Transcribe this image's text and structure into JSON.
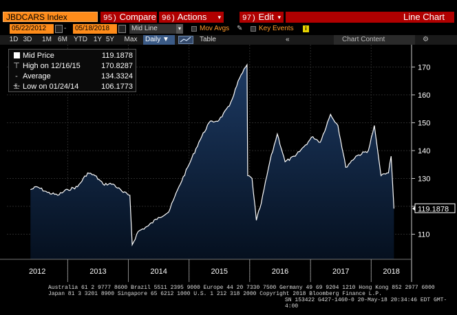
{
  "title_bar": {
    "ticker": "JBDCARS Index",
    "compare": {
      "num": "95)",
      "label": "Compare"
    },
    "actions": {
      "num": "96)",
      "label": "Actions"
    },
    "edit": {
      "num": "97)",
      "label": "Edit"
    },
    "chart_kind": "Line Chart"
  },
  "toolbar": {
    "start_date": "05/22/2012",
    "end_date": "05/18/2018",
    "field": "Mid Line",
    "mov_avgs": "Mov Avgs",
    "key_events": "Key Events",
    "info": "i"
  },
  "periods": [
    "1D",
    "3D",
    "1M",
    "6M",
    "YTD",
    "1Y",
    "5Y",
    "Max"
  ],
  "frequency": "Daily",
  "table_label": "Table",
  "collapse_icon": "«",
  "chart_content": "Chart Content",
  "legend": [
    {
      "label": "Mid Price",
      "value": "119.1878"
    },
    {
      "label": "High on 12/16/15",
      "value": "170.8287"
    },
    {
      "label": "Average",
      "value": "134.3324"
    },
    {
      "label": "Low on 01/24/14",
      "value": "106.1773"
    }
  ],
  "colors": {
    "line": "#ffffff",
    "area_top": "#1d3a63",
    "area_bottom": "#05101f",
    "orange": "#ff8c1a",
    "red": "#b00000"
  },
  "last_price_label": "119.1878",
  "chart_data": {
    "type": "area",
    "x_label": "",
    "y_label": "",
    "x_ticks": [
      "2012",
      "2013",
      "2014",
      "2015",
      "2016",
      "2017",
      "2018"
    ],
    "y_ticks": [
      110,
      120,
      130,
      140,
      150,
      160,
      170
    ],
    "ylim": [
      101,
      178
    ],
    "grid": true,
    "last_value": 119.1878,
    "series": [
      {
        "x": [
          "2012-05-22",
          "2012-07-01",
          "2012-09-01",
          "2012-11-01",
          "2013-01-01",
          "2013-03-01",
          "2013-05-01",
          "2013-06-15",
          "2013-08-01",
          "2013-10-01",
          "2013-12-01",
          "2014-01-10",
          "2014-01-24",
          "2014-03-01",
          "2014-05-01",
          "2014-07-01",
          "2014-09-01",
          "2014-11-01",
          "2015-01-01",
          "2015-03-01",
          "2015-05-01",
          "2015-07-01",
          "2015-09-01",
          "2015-11-01",
          "2015-12-16",
          "2015-12-20",
          "2016-01-15",
          "2016-02-10",
          "2016-03-10",
          "2016-05-01",
          "2016-06-15",
          "2016-08-01",
          "2016-10-01",
          "2016-12-01",
          "2017-01-15",
          "2017-03-01",
          "2017-05-01",
          "2017-06-15",
          "2017-08-01",
          "2017-10-01",
          "2017-12-15",
          "2018-01-20",
          "2018-03-01",
          "2018-04-15",
          "2018-05-01",
          "2018-05-18"
        ],
        "values": [
          126,
          127,
          125,
          124,
          126,
          127,
          132,
          131,
          128,
          128,
          125,
          124,
          106.2,
          111,
          113,
          116,
          118,
          127,
          135,
          143,
          150,
          151,
          156,
          166,
          170.8,
          131,
          130,
          115,
          121,
          136,
          146,
          136,
          138,
          142,
          145,
          143,
          153,
          149,
          134,
          138,
          140,
          149,
          131,
          132,
          138,
          119.2
        ]
      }
    ]
  },
  "footer": {
    "line1": "Australia 61 2 9777 8600 Brazil 5511 2395 9000 Europe 44 20 7330 7500 Germany 49 69 9204 1210 Hong Kong 852 2977 6000",
    "line2": "Japan 81 3 3201 8900           Singapore 65 6212 1000           U.S. 1 212 318 2000          Copyright 2018 Bloomberg Finance L.P.",
    "line3": "SN 153422 G427-1460-0 20-May-18 20:34:46 EDT  GMT-4:00"
  }
}
